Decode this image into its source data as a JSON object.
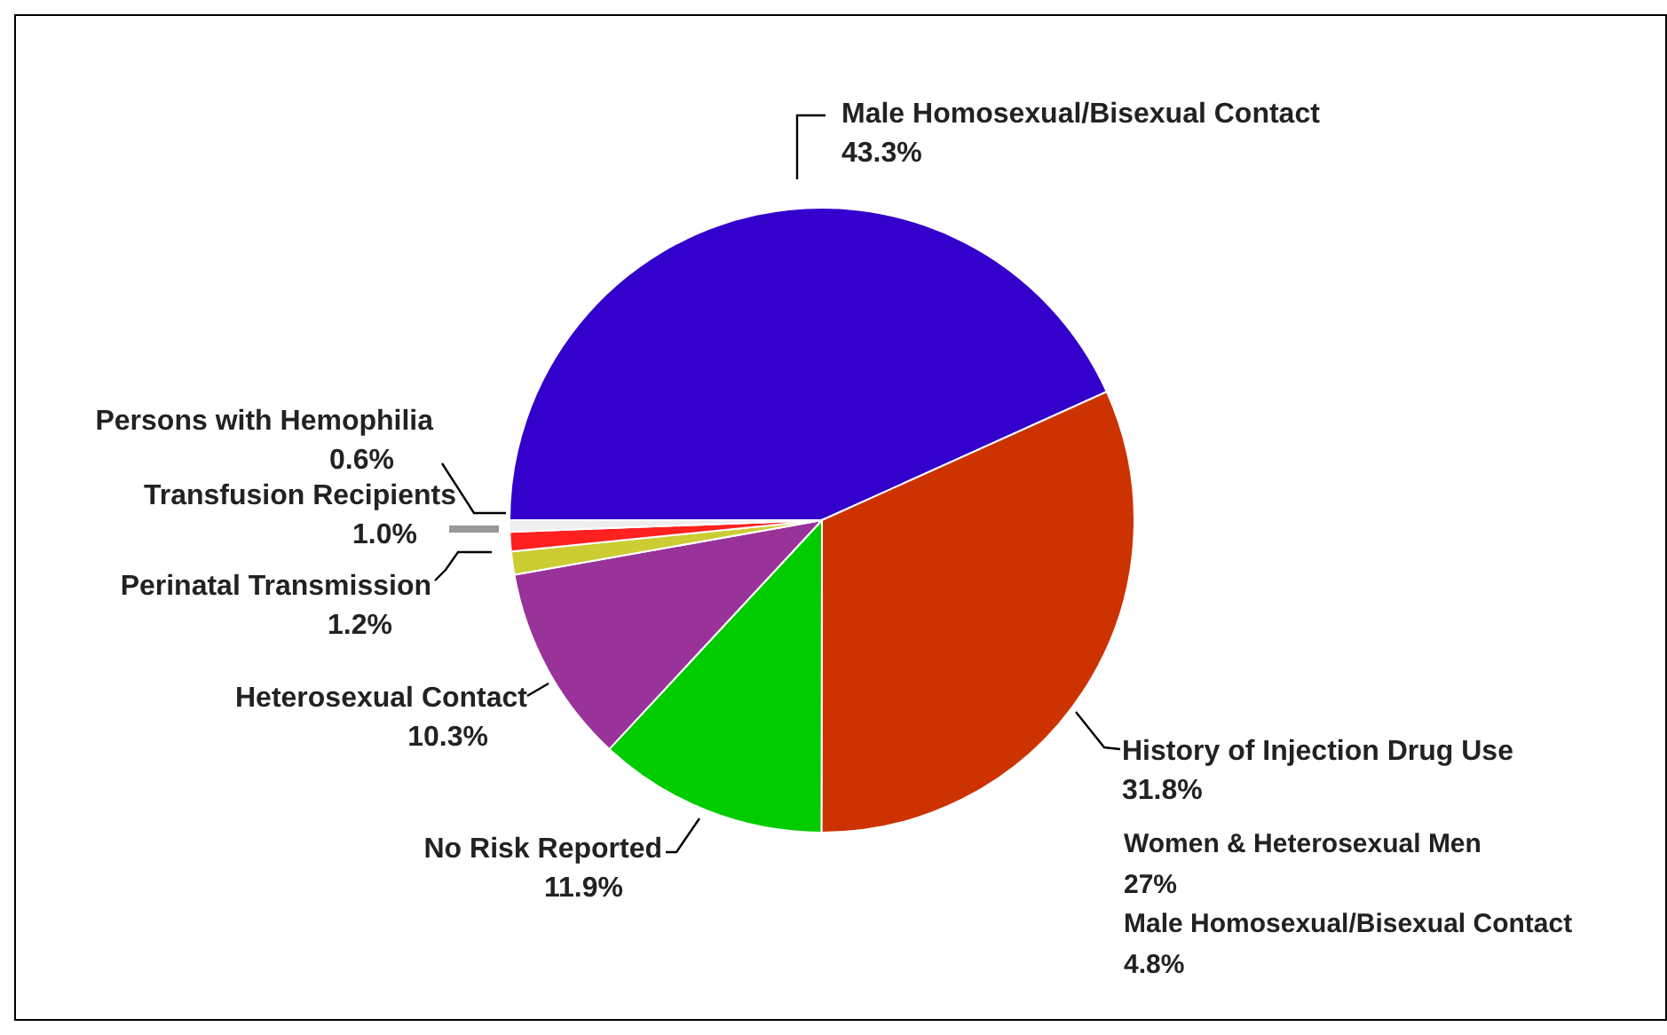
{
  "chart_data": {
    "type": "pie",
    "categories": [
      "Male Homosexual/Bisexual Contact",
      "History of Injection Drug Use",
      "No Risk Reported",
      "Heterosexual Contact",
      "Perinatal Transmission",
      "Transfusion Recipients",
      "Persons with Hemophilia"
    ],
    "values": [
      43.3,
      31.8,
      11.9,
      10.3,
      1.2,
      1.0,
      0.6
    ],
    "value_labels": [
      "43.3%",
      "31.8%",
      "11.9%",
      "10.3%",
      "1.2%",
      "1.0%",
      "0.6%"
    ],
    "colors": [
      "#3300cc",
      "#cc3300",
      "#00cc00",
      "#993399",
      "#cccc33",
      "#ff2020",
      "#eeeeee"
    ],
    "annotations": [
      "Women & Heterosexual Men",
      "27%",
      "Male Homosexual/Bisexual Contact",
      "4.8%"
    ],
    "legend": false
  }
}
